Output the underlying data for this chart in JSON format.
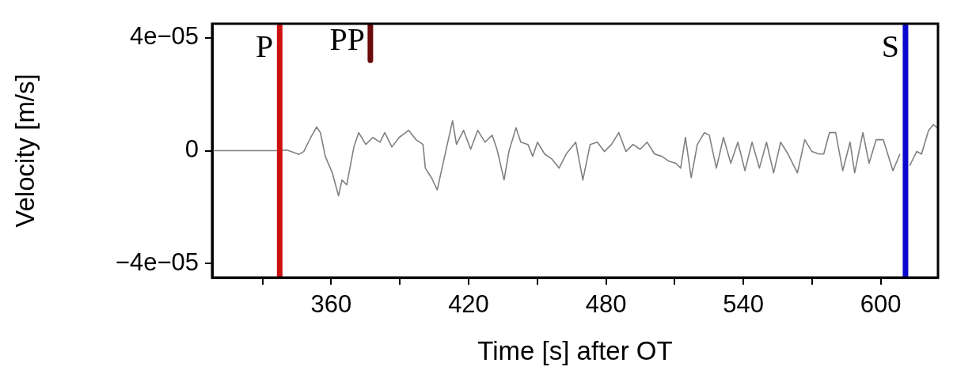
{
  "chart_data": {
    "type": "line",
    "xlabel": "Time [s] after OT",
    "ylabel": "Velocity [m/s]",
    "xlim": [
      308,
      625
    ],
    "ylim": [
      -4.5e-05,
      4.5e-05
    ],
    "xticks": [
      {
        "value": 330,
        "label": null
      },
      360,
      {
        "value": 390,
        "label": null
      },
      420,
      {
        "value": 450,
        "label": null
      },
      480,
      {
        "value": 510,
        "label": null
      },
      540,
      {
        "value": 570,
        "label": null
      },
      600
    ],
    "yticks": [
      {
        "value": -4e-05,
        "label": "−4e−05"
      },
      0,
      {
        "value": 4e-05,
        "label": "4e−05"
      }
    ],
    "grid": false,
    "legend": false,
    "marker": "none",
    "line_style": "solid",
    "series": [
      {
        "color": "#808080",
        "x": [
          308,
          337.6,
          340.7,
          345.9,
          348,
          351.1,
          353.6,
          355.3,
          357.4,
          360.5,
          363.2,
          364.7,
          366.8,
          369.9,
          372,
          375.1,
          378.2,
          381.3,
          383.4,
          386.5,
          389.7,
          393.8,
          397,
          400.1,
          401.1,
          403.8,
          406.3,
          408.4,
          410.9,
          413,
          414.7,
          417.8,
          420.9,
          424,
          427.2,
          430.3,
          432.4,
          435.5,
          437.6,
          440.7,
          442.8,
          445.9,
          448,
          450.1,
          453.2,
          456.3,
          459.5,
          462.6,
          466.8,
          469.9,
          473.1,
          476.2,
          479.3,
          482.4,
          485.6,
          488.7,
          491.8,
          494.9,
          498,
          501.2,
          504.3,
          507.4,
          510.5,
          512.6,
          514.7,
          517.2,
          519.9,
          523,
          525.1,
          528.2,
          531.3,
          534.5,
          537.6,
          540.7,
          543.8,
          547,
          550.1,
          553.2,
          556.3,
          559.5,
          563.6,
          566.8,
          569.9,
          573,
          575.1,
          577.6,
          580.3,
          583.4,
          586.6,
          588.6,
          592.2,
          594.9,
          598,
          601.1,
          605.3,
          608.4,
          610.5,
          612.6,
          615.7,
          617.8,
          620.9,
          623,
          624.7
        ],
        "values": [
          0,
          0,
          2e-07,
          -1.3e-06,
          -3e-07,
          4.7e-06,
          8.4e-06,
          6.4e-06,
          -2e-06,
          -7.9e-06,
          -1.6e-05,
          -1.04e-05,
          -1.21e-05,
          1.3e-06,
          6.4e-06,
          2.2e-06,
          4.7e-06,
          3e-06,
          6.4e-06,
          1.3e-06,
          4.7e-06,
          7.2e-06,
          3.9e-06,
          2.2e-06,
          -6.2e-06,
          -9.6e-06,
          -1.39e-05,
          -6.2e-06,
          3e-06,
          1.06e-05,
          2.2e-06,
          7.2e-06,
          5e-07,
          7.2e-06,
          3e-06,
          5.5e-06,
          5e-07,
          -1.04e-05,
          -3e-07,
          8.1e-06,
          3e-06,
          2.2e-06,
          -2e-06,
          3e-06,
          -1.2e-06,
          -2.9e-06,
          -6.2e-06,
          -1.2e-06,
          3e-06,
          -1.04e-05,
          2.2e-06,
          3e-06,
          -3e-07,
          2.2e-06,
          6.4e-06,
          -3e-07,
          2.2e-06,
          5e-07,
          3e-06,
          -1.2e-06,
          -2e-06,
          -3.7e-06,
          -4.5e-06,
          -6.2e-06,
          4.7e-06,
          -9.6e-06,
          2.2e-06,
          6.4e-06,
          5.5e-06,
          -6.2e-06,
          4.7e-06,
          -4.5e-06,
          3e-06,
          -7.1e-06,
          3e-06,
          -6.2e-06,
          3e-06,
          -7.9e-06,
          3e-06,
          -1.2e-06,
          -7.9e-06,
          3.9e-06,
          -3e-07,
          -1.2e-06,
          -1.2e-06,
          6.4e-06,
          6.4e-06,
          -7.1e-06,
          3e-06,
          -7.9e-06,
          6.4e-06,
          -4.5e-06,
          3.9e-06,
          3.9e-06,
          -7.1e-06,
          -1.2e-06,
          null,
          -5.4e-06,
          -3e-07,
          -1.2e-06,
          7.2e-06,
          9.2e-06,
          8.1e-06
        ]
      },
      {
        "name": "PP",
        "color": "#6b0a0a",
        "x": [
          377.1,
          377.1
        ],
        "values": [
          4.5e-05,
          3.2e-05
        ]
      }
    ],
    "ref_lines": [
      {
        "axis": "x",
        "value": 337.5,
        "label": "P",
        "color": "#cc1111"
      },
      {
        "axis": "x",
        "value": 610.8,
        "label": "S",
        "color": "#0a0acc"
      }
    ]
  }
}
